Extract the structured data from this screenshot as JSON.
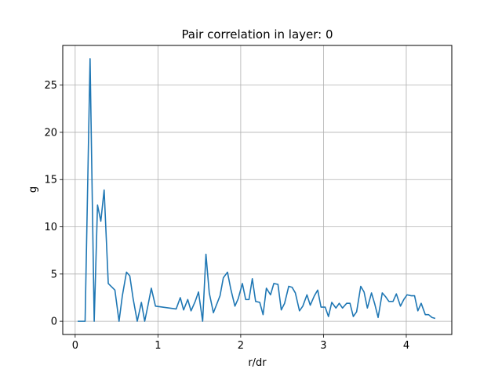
{
  "chart_data": {
    "type": "line",
    "title": "Pair correlation in layer: 0",
    "xlabel": "r/dr",
    "ylabel": "g",
    "xlim": [
      -0.15,
      4.55
    ],
    "ylim": [
      -1.4,
      29.2
    ],
    "xticks": [
      0,
      1,
      2,
      3,
      4
    ],
    "yticks": [
      0,
      5,
      10,
      15,
      20,
      25
    ],
    "grid": true,
    "series": [
      {
        "color": "#1f77b4",
        "x": [
          0.03,
          0.12,
          0.18,
          0.23,
          0.27,
          0.31,
          0.35,
          0.4,
          0.48,
          0.53,
          0.57,
          0.62,
          0.66,
          0.7,
          0.75,
          0.8,
          0.84,
          0.88,
          0.92,
          0.97,
          1.22,
          1.27,
          1.31,
          1.36,
          1.4,
          1.45,
          1.49,
          1.54,
          1.58,
          1.62,
          1.67,
          1.75,
          1.79,
          1.84,
          1.88,
          1.93,
          1.97,
          2.02,
          2.06,
          2.1,
          2.14,
          2.18,
          2.23,
          2.27,
          2.31,
          2.36,
          2.4,
          2.45,
          2.49,
          2.53,
          2.58,
          2.62,
          2.66,
          2.71,
          2.75,
          2.8,
          2.84,
          2.89,
          2.93,
          2.97,
          3.02,
          3.06,
          3.1,
          3.15,
          3.19,
          3.23,
          3.28,
          3.32,
          3.36,
          3.4,
          3.45,
          3.49,
          3.53,
          3.58,
          3.62,
          3.66,
          3.71,
          3.75,
          3.79,
          3.84,
          3.88,
          3.93,
          3.97,
          4.01,
          4.06,
          4.1,
          4.14,
          4.18,
          4.23,
          4.27,
          4.31,
          4.35
        ],
        "y": [
          0.0,
          0.0,
          27.8,
          0.0,
          12.3,
          10.6,
          13.9,
          4.0,
          3.3,
          0.0,
          2.7,
          5.2,
          4.8,
          2.4,
          0.0,
          2.0,
          0.0,
          1.7,
          3.5,
          1.6,
          1.3,
          2.5,
          1.2,
          2.3,
          1.1,
          2.1,
          3.1,
          0.0,
          7.1,
          3.0,
          0.9,
          2.7,
          4.6,
          5.2,
          3.4,
          1.6,
          2.4,
          4.0,
          2.3,
          2.3,
          4.5,
          2.1,
          2.0,
          0.7,
          3.5,
          2.8,
          4.0,
          3.9,
          1.2,
          1.9,
          3.7,
          3.6,
          3.0,
          1.1,
          1.6,
          2.8,
          1.7,
          2.7,
          3.3,
          1.5,
          1.5,
          0.5,
          2.0,
          1.4,
          1.9,
          1.4,
          1.9,
          1.9,
          0.5,
          1.0,
          3.7,
          3.1,
          1.4,
          3.0,
          1.8,
          0.4,
          3.0,
          2.6,
          2.1,
          2.1,
          2.9,
          1.6,
          2.3,
          2.8,
          2.7,
          2.7,
          1.1,
          1.9,
          0.7,
          0.7,
          0.4,
          0.3
        ]
      }
    ]
  }
}
